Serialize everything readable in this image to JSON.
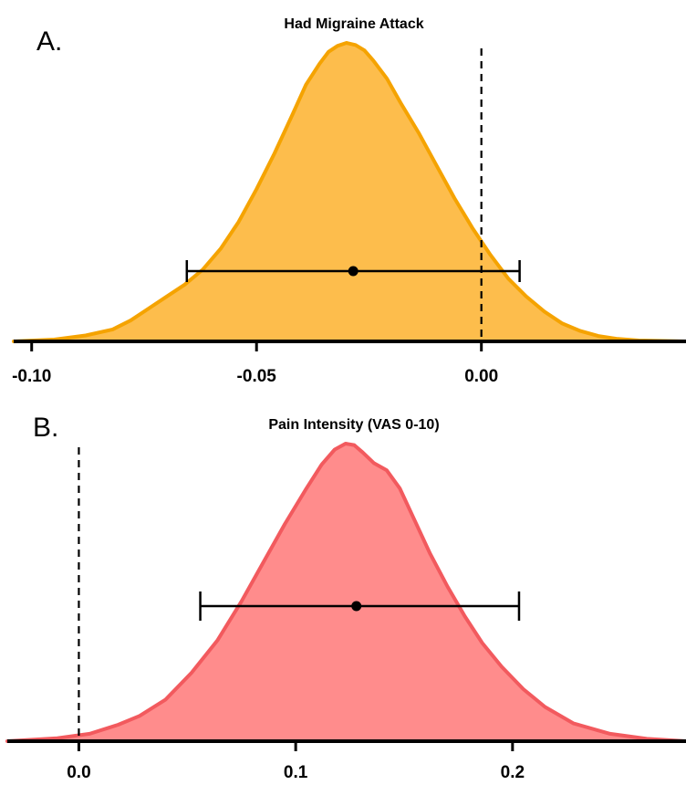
{
  "chart_data": [
    {
      "panel": "A.",
      "type": "area",
      "title": "Had Migraine Attack",
      "xlabel": "",
      "ylabel": "",
      "xlim": [
        -0.104,
        0.0455
      ],
      "ticks": [
        -0.1,
        -0.05,
        0.0
      ],
      "tick_labels": [
        "-0.10",
        "-0.05",
        "0.00"
      ],
      "reference_line_x": 0.0,
      "fill_color": "#FDBD4C",
      "stroke_color": "#F5A300",
      "density": {
        "x": [
          -0.104,
          -0.095,
          -0.088,
          -0.082,
          -0.078,
          -0.074,
          -0.07,
          -0.066,
          -0.062,
          -0.058,
          -0.054,
          -0.05,
          -0.046,
          -0.042,
          -0.039,
          -0.036,
          -0.034,
          -0.032,
          -0.03,
          -0.028,
          -0.026,
          -0.024,
          -0.021,
          -0.018,
          -0.014,
          -0.01,
          -0.006,
          -0.002,
          0.002,
          0.006,
          0.01,
          0.014,
          0.018,
          0.022,
          0.026,
          0.03,
          0.035,
          0.0455
        ],
        "y": [
          0.0,
          0.006,
          0.02,
          0.04,
          0.07,
          0.11,
          0.15,
          0.19,
          0.24,
          0.31,
          0.4,
          0.51,
          0.63,
          0.76,
          0.86,
          0.93,
          0.97,
          0.99,
          1.0,
          0.993,
          0.975,
          0.94,
          0.88,
          0.8,
          0.7,
          0.59,
          0.48,
          0.38,
          0.29,
          0.21,
          0.15,
          0.1,
          0.06,
          0.035,
          0.018,
          0.009,
          0.003,
          0.0
        ]
      },
      "point_estimate": -0.0285,
      "interval": [
        -0.0655,
        0.0085
      ]
    },
    {
      "panel": "B.",
      "type": "area",
      "title": "Pain Intensity (VAS 0-10)",
      "xlabel": "",
      "ylabel": "",
      "xlim": [
        -0.033,
        0.28
      ],
      "ticks": [
        0.0,
        0.1,
        0.2
      ],
      "tick_labels": [
        "0.0",
        "0.1",
        "0.2"
      ],
      "reference_line_x": 0.0,
      "fill_color": "#FF8C8C",
      "stroke_color": "#F25A5E",
      "density": {
        "x": [
          -0.033,
          -0.01,
          0.005,
          0.018,
          0.028,
          0.04,
          0.052,
          0.064,
          0.075,
          0.085,
          0.095,
          0.105,
          0.112,
          0.118,
          0.123,
          0.127,
          0.131,
          0.136,
          0.142,
          0.148,
          0.155,
          0.162,
          0.17,
          0.178,
          0.186,
          0.195,
          0.205,
          0.215,
          0.228,
          0.245,
          0.262,
          0.28
        ],
        "y": [
          0.0,
          0.01,
          0.025,
          0.055,
          0.085,
          0.14,
          0.23,
          0.34,
          0.47,
          0.6,
          0.73,
          0.85,
          0.93,
          0.98,
          1.0,
          0.995,
          0.97,
          0.935,
          0.91,
          0.85,
          0.74,
          0.63,
          0.52,
          0.42,
          0.33,
          0.25,
          0.175,
          0.115,
          0.06,
          0.025,
          0.008,
          0.0
        ]
      },
      "point_estimate": 0.128,
      "interval": [
        0.056,
        0.203
      ]
    }
  ]
}
